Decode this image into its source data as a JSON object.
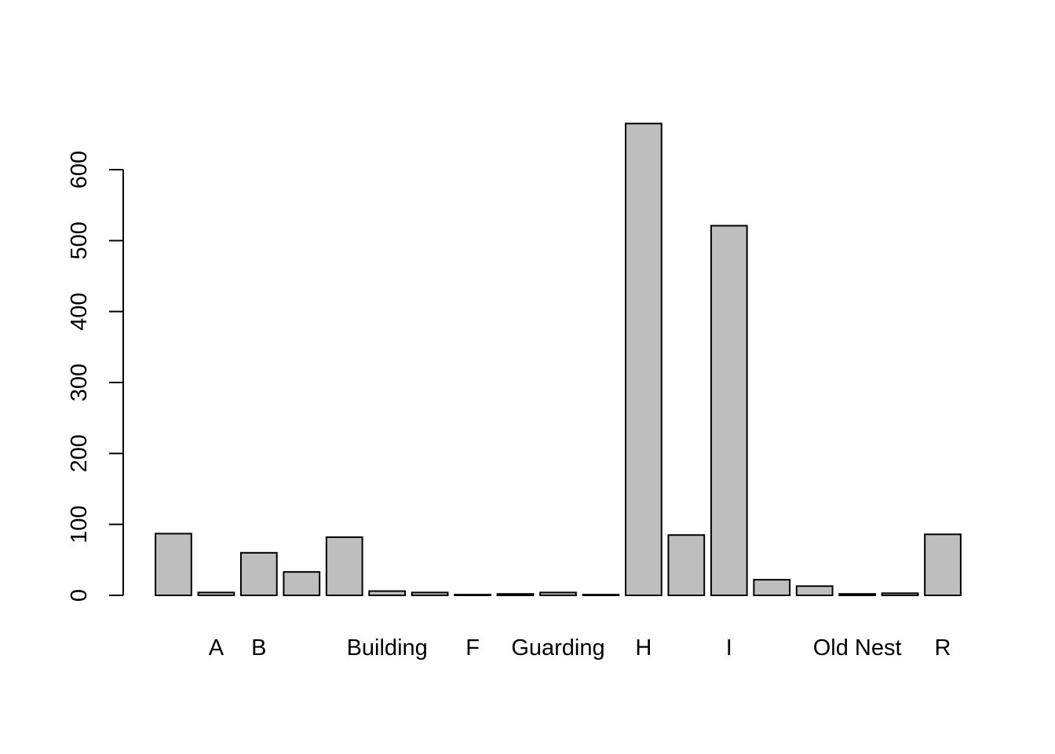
{
  "chart_data": {
    "type": "bar",
    "categories": [
      null,
      "A",
      "B",
      null,
      null,
      "Building",
      null,
      "F",
      null,
      "Guarding",
      null,
      "H",
      null,
      "I",
      null,
      null,
      "Old Nest",
      null,
      "R"
    ],
    "values": [
      87,
      4,
      60,
      33,
      82,
      6,
      4,
      1,
      2,
      4,
      1,
      665,
      85,
      521,
      22,
      13,
      2,
      3,
      86
    ],
    "color": "#bebebe",
    "ylim": [
      0,
      700
    ],
    "yticks": [
      0,
      100,
      200,
      300,
      400,
      500,
      600
    ],
    "grid": false
  }
}
